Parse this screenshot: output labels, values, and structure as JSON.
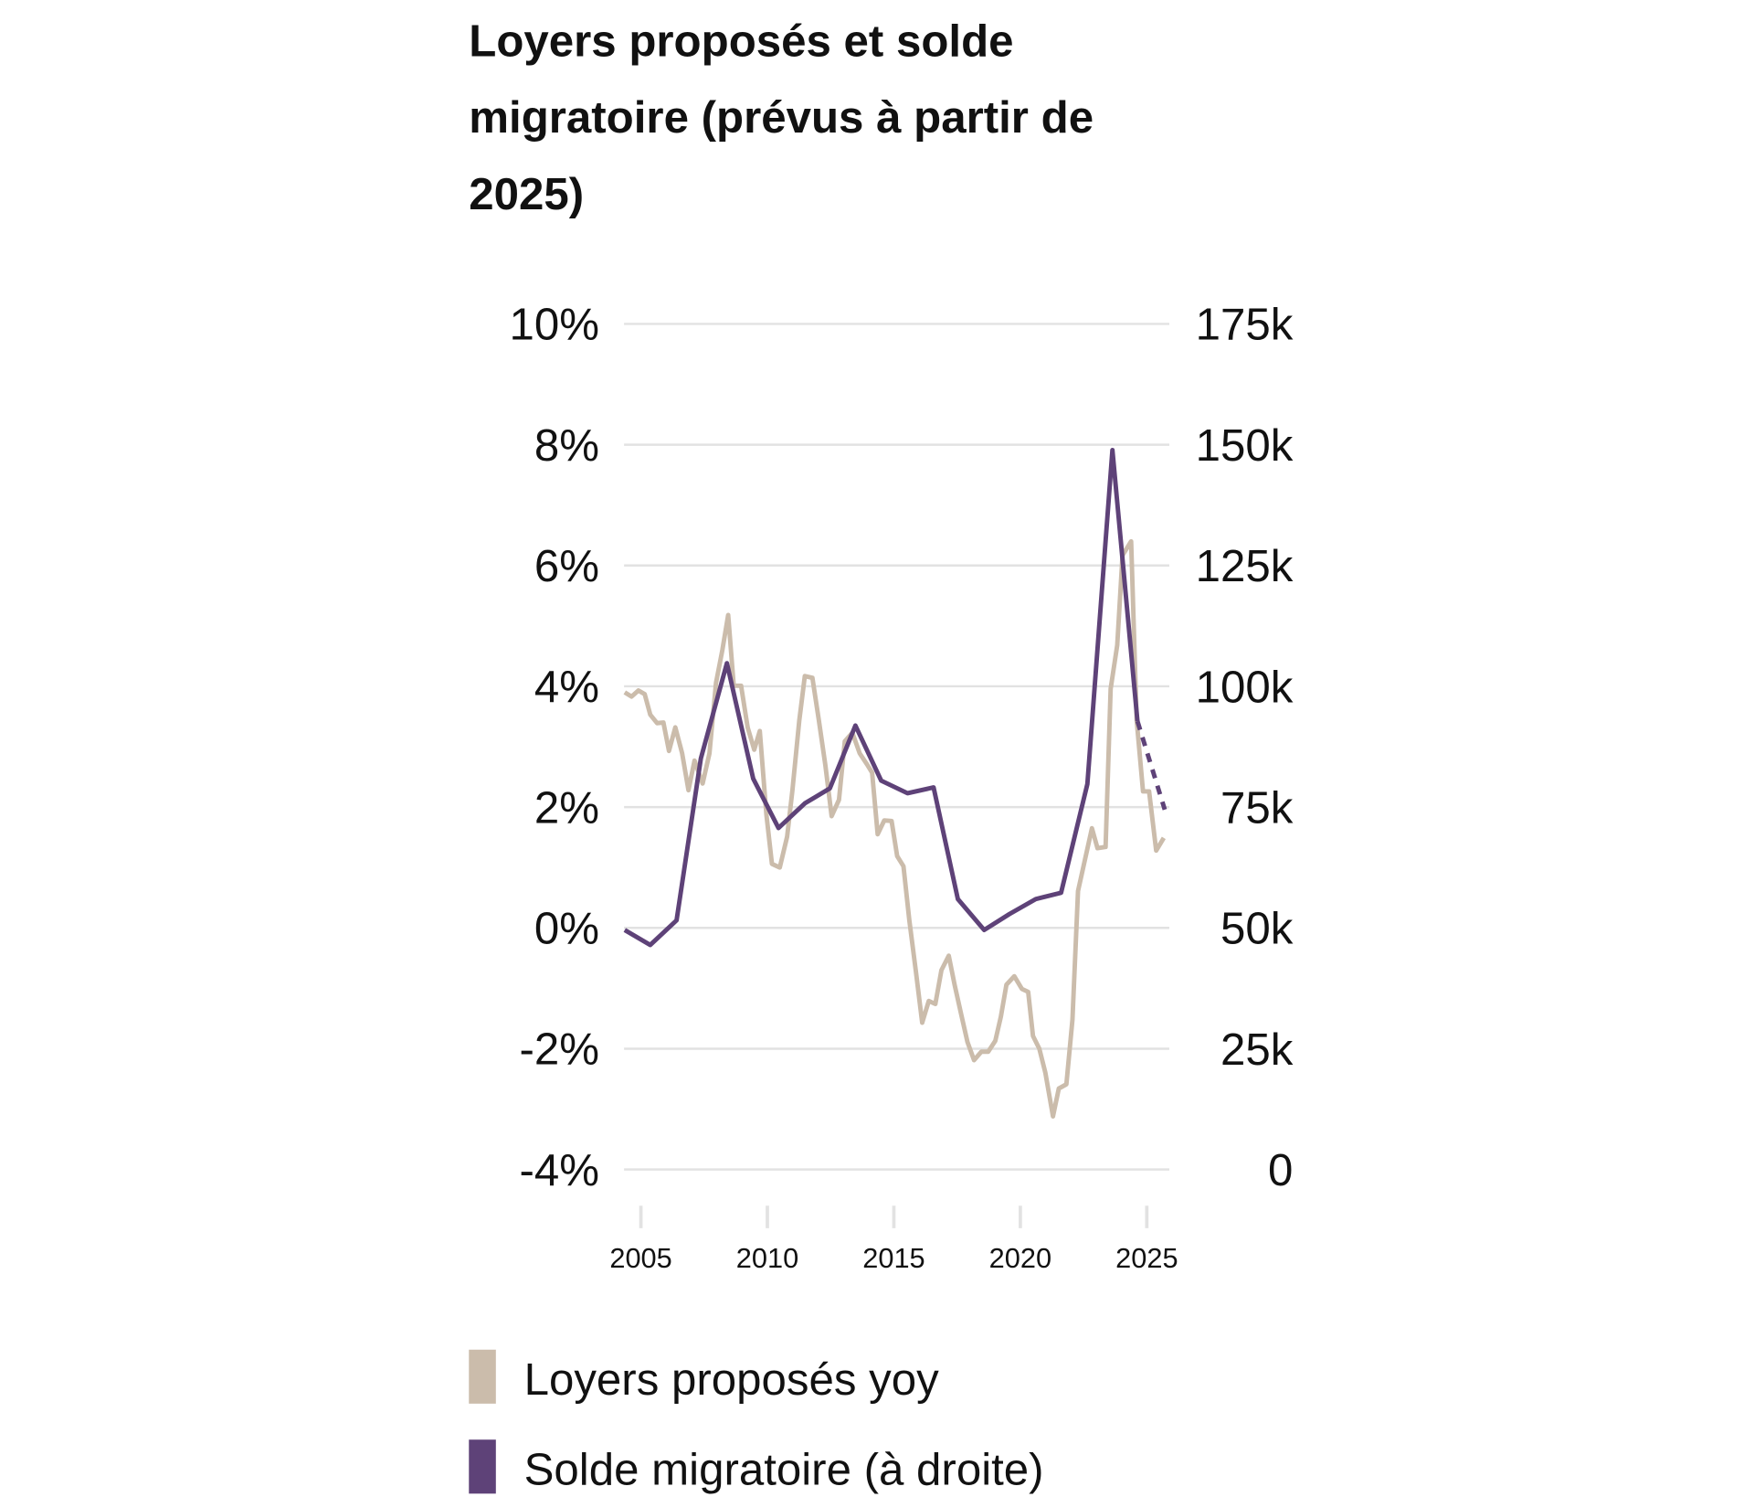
{
  "chart_data": {
    "type": "line",
    "title_lines": [
      "Loyers proposés et solde",
      "migratoire (prévus à partir de",
      "2025)"
    ],
    "x_ticks": [
      "2005",
      "2010",
      "2015",
      "2020",
      "2025"
    ],
    "x_tick_values": [
      2005,
      2010,
      2015,
      2020,
      2025
    ],
    "y_left": {
      "ticks": [
        "10%",
        "8%",
        "6%",
        "4%",
        "2%",
        "0%",
        "-2%",
        "-4%"
      ],
      "tick_values": [
        10,
        8,
        6,
        4,
        2,
        0,
        -2,
        -4
      ],
      "range": [
        -4,
        10
      ]
    },
    "y_right": {
      "ticks": [
        "175k",
        "150k",
        "125k",
        "100k",
        "75k",
        "50k",
        "25k",
        "0"
      ],
      "tick_values": [
        175,
        150,
        125,
        100,
        75,
        50,
        25,
        0
      ],
      "range": [
        0,
        175
      ]
    },
    "grid": true,
    "legend_placement": "bottom",
    "series": [
      {
        "name": "Loyers proposés yoy",
        "axis": "left",
        "color": "#cbbcab",
        "x": [
          2004.36,
          2004.63,
          2004.9,
          2005.15,
          2005.37,
          2005.64,
          2005.89,
          2006.11,
          2006.36,
          2006.63,
          2006.88,
          2007.12,
          2007.44,
          2007.71,
          2007.97,
          2008.22,
          2008.45,
          2008.67,
          2008.96,
          2009.22,
          2009.48,
          2009.7,
          2009.96,
          2010.18,
          2010.49,
          2010.78,
          2010.99,
          2011.26,
          2011.48,
          2011.78,
          2012.03,
          2012.29,
          2012.54,
          2012.83,
          2013.06,
          2013.36,
          2013.65,
          2013.95,
          2014.14,
          2014.36,
          2014.62,
          2014.91,
          2015.13,
          2015.38,
          2015.61,
          2015.87,
          2016.12,
          2016.38,
          2016.64,
          2016.88,
          2017.17,
          2017.4,
          2017.65,
          2017.91,
          2018.17,
          2018.46,
          2018.73,
          2019.01,
          2019.23,
          2019.45,
          2019.76,
          2020.06,
          2020.31,
          2020.5,
          2020.75,
          2020.99,
          2021.29,
          2021.52,
          2021.82,
          2022.06,
          2022.28,
          2022.56,
          2022.83,
          2023.05,
          2023.37,
          2023.57,
          2023.83,
          2024.04,
          2024.38,
          2024.6,
          2024.85,
          2025.09,
          2025.37,
          2025.67
        ],
        "y": [
          3.9,
          3.83,
          3.93,
          3.87,
          3.53,
          3.39,
          3.4,
          2.93,
          3.32,
          2.89,
          2.28,
          2.77,
          2.39,
          2.89,
          4.06,
          4.6,
          5.18,
          4.01,
          4.01,
          3.32,
          2.95,
          3.26,
          1.88,
          1.06,
          1.0,
          1.51,
          2.28,
          3.43,
          4.17,
          4.14,
          3.45,
          2.7,
          1.85,
          2.12,
          3.09,
          3.23,
          2.89,
          2.7,
          2.57,
          1.55,
          1.78,
          1.77,
          1.19,
          1.02,
          0.13,
          -0.72,
          -1.57,
          -1.21,
          -1.26,
          -0.7,
          -0.46,
          -0.94,
          -1.41,
          -1.89,
          -2.19,
          -2.05,
          -2.05,
          -1.87,
          -1.47,
          -0.94,
          -0.8,
          -1.01,
          -1.06,
          -1.79,
          -2.0,
          -2.4,
          -3.12,
          -2.66,
          -2.59,
          -1.52,
          0.61,
          1.14,
          1.65,
          1.32,
          1.34,
          3.96,
          4.68,
          6.17,
          6.4,
          3.43,
          2.26,
          2.26,
          1.28,
          1.49
        ]
      },
      {
        "name": "Solde migratoire (à droite)",
        "axis": "right",
        "color": "#5e4278",
        "x": [
          2004.36,
          2005.37,
          2006.41,
          2007.37,
          2008.4,
          2009.44,
          2010.44,
          2011.48,
          2012.47,
          2013.48,
          2014.5,
          2015.54,
          2016.57,
          2017.53,
          2018.57,
          2019.57,
          2020.61,
          2021.61,
          2022.65,
          2023.64,
          2024.63,
          2025.71
        ],
        "y": [
          49.6,
          46.5,
          51.6,
          85.1,
          104.8,
          80.9,
          70.7,
          75.8,
          78.9,
          91.9,
          80.5,
          77.9,
          79.1,
          56.0,
          49.6,
          52.9,
          56.0,
          57.3,
          79.8,
          148.9,
          92.8,
          74.5
        ],
        "forecast_from": 2024.63
      }
    ]
  }
}
